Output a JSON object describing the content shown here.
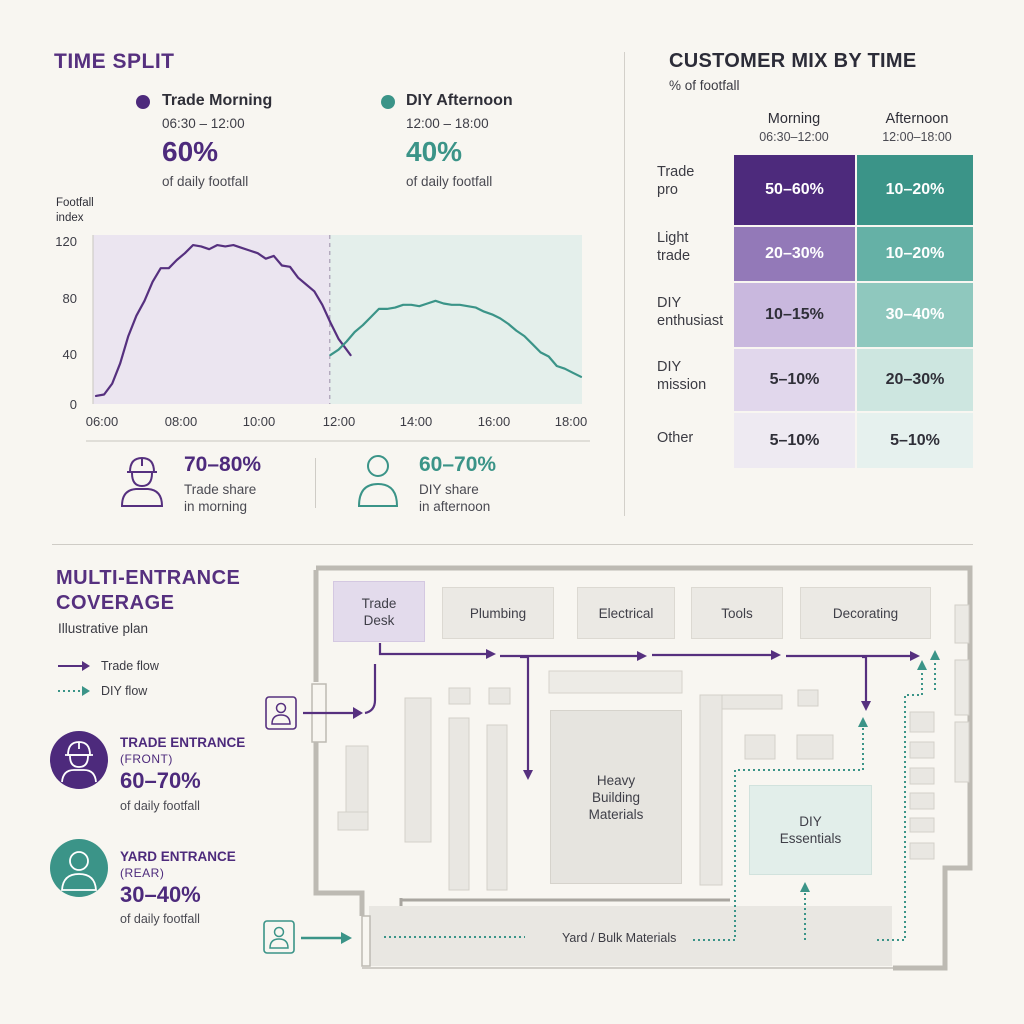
{
  "time_split": {
    "title": "TIME SPLIT",
    "morning": {
      "name": "Trade Morning",
      "time": "06:30 – 12:00",
      "pct": "60%",
      "note": "of daily footfall"
    },
    "afternoon": {
      "name": "DIY Afternoon",
      "time": "12:00 – 18:00",
      "pct": "40%",
      "note": "of daily footfall"
    },
    "stat_trade": {
      "value": "70–80%",
      "line1": "Trade share",
      "line2": "in morning"
    },
    "stat_diy": {
      "value": "60–70%",
      "line1": "DIY share",
      "line2": "in afternoon"
    }
  },
  "chart_data": {
    "type": "line",
    "ylabel_line1": "Footfall",
    "ylabel_line2": "index",
    "xlabel": "",
    "ylim": [
      0,
      120
    ],
    "yticks": [
      0,
      40,
      80,
      120
    ],
    "xticks": [
      "06:00",
      "08:00",
      "10:00",
      "12:00",
      "14:00",
      "16:00",
      "18:00"
    ],
    "x_range": [
      6.0,
      18.0
    ],
    "divider_x": 12.0,
    "series": [
      {
        "segment": "morning",
        "color": "#56307f",
        "points": [
          [
            6.2,
            6
          ],
          [
            6.4,
            7
          ],
          [
            6.6,
            15
          ],
          [
            6.8,
            30
          ],
          [
            7.0,
            50
          ],
          [
            7.2,
            65
          ],
          [
            7.4,
            76
          ],
          [
            7.6,
            90
          ],
          [
            7.8,
            100
          ],
          [
            8.0,
            100
          ],
          [
            8.2,
            106
          ],
          [
            8.4,
            111
          ],
          [
            8.6,
            117
          ],
          [
            8.8,
            116
          ],
          [
            9.0,
            114
          ],
          [
            9.2,
            117
          ],
          [
            9.4,
            116
          ],
          [
            9.6,
            117
          ],
          [
            9.8,
            115
          ],
          [
            10.0,
            113
          ],
          [
            10.2,
            111
          ],
          [
            10.4,
            107
          ],
          [
            10.6,
            109
          ],
          [
            10.8,
            102
          ],
          [
            11.0,
            101
          ],
          [
            11.2,
            93
          ],
          [
            11.4,
            88
          ],
          [
            11.6,
            83
          ],
          [
            11.8,
            73
          ],
          [
            12.0,
            60
          ],
          [
            12.2,
            48
          ],
          [
            12.4,
            40
          ],
          [
            12.5,
            36
          ]
        ]
      },
      {
        "segment": "afternoon",
        "color": "#3b9488",
        "points": [
          [
            12.0,
            36
          ],
          [
            12.2,
            40
          ],
          [
            12.4,
            46
          ],
          [
            12.6,
            53
          ],
          [
            12.8,
            58
          ],
          [
            13.0,
            64
          ],
          [
            13.2,
            70
          ],
          [
            13.4,
            70
          ],
          [
            13.6,
            71
          ],
          [
            13.8,
            73
          ],
          [
            14.0,
            73
          ],
          [
            14.2,
            72
          ],
          [
            14.4,
            74
          ],
          [
            14.6,
            76
          ],
          [
            14.8,
            74
          ],
          [
            15.0,
            73
          ],
          [
            15.2,
            73
          ],
          [
            15.4,
            72
          ],
          [
            15.6,
            71
          ],
          [
            15.8,
            68
          ],
          [
            16.0,
            66
          ],
          [
            16.2,
            63
          ],
          [
            16.4,
            59
          ],
          [
            16.6,
            54
          ],
          [
            16.8,
            50
          ],
          [
            17.0,
            44
          ],
          [
            17.2,
            38
          ],
          [
            17.4,
            35
          ],
          [
            17.6,
            28
          ],
          [
            17.8,
            26
          ],
          [
            18.0,
            23
          ],
          [
            18.2,
            20
          ]
        ]
      }
    ]
  },
  "customer_mix": {
    "title": "CUSTOMER MIX BY TIME",
    "subtitle": "% of footfall",
    "columns": [
      {
        "name": "Morning",
        "time": "06:30–12:00"
      },
      {
        "name": "Afternoon",
        "time": "12:00–18:00"
      }
    ],
    "rows": [
      {
        "label_l1": "Trade",
        "label_l2": "pro",
        "morning": "50–60%",
        "afternoon": "10–20%"
      },
      {
        "label_l1": "Light",
        "label_l2": "trade",
        "morning": "20–30%",
        "afternoon": "10–20%"
      },
      {
        "label_l1": "DIY",
        "label_l2": "enthusiast",
        "morning": "10–15%",
        "afternoon": "30–40%"
      },
      {
        "label_l1": "DIY",
        "label_l2": "mission",
        "morning": "5–10%",
        "afternoon": "20–30%"
      },
      {
        "label_l1": "Other",
        "label_l2": "",
        "morning": "5–10%",
        "afternoon": "5–10%"
      }
    ],
    "morning_colors": [
      "#4d2a7c",
      "#9379b8",
      "#c9b8de",
      "#e1d7ec",
      "#eeeaf2"
    ],
    "afternoon_colors": [
      "#3b9488",
      "#65b1a6",
      "#8fc8be",
      "#cde6e0",
      "#e6f1ee"
    ],
    "morning_text_colors": [
      "#ffffff",
      "#ffffff",
      "#2f2f38",
      "#2f2f38",
      "#2f2f38"
    ],
    "afternoon_text_colors": [
      "#ffffff",
      "#ffffff",
      "#ffffff",
      "#2f2f38",
      "#2f2f38"
    ]
  },
  "coverage": {
    "title_l1": "MULTI-ENTRANCE",
    "title_l2": "COVERAGE",
    "subtitle": "Illustrative plan",
    "legend_trade": "Trade flow",
    "legend_diy": "DIY flow",
    "trade_entrance": {
      "name": "TRADE ENTRANCE",
      "sub": "(FRONT)",
      "pct": "60–70%",
      "note": "of daily footfall"
    },
    "yard_entrance": {
      "name": "YARD ENTRANCE",
      "sub": "(REAR)",
      "pct": "30–40%",
      "note": "of daily footfall"
    }
  },
  "plan": {
    "trade_desk_l1": "Trade",
    "trade_desk_l2": "Desk",
    "plumbing": "Plumbing",
    "electrical": "Electrical",
    "tools": "Tools",
    "decorating": "Decorating",
    "heavy_l1": "Heavy",
    "heavy_l2": "Building",
    "heavy_l3": "Materials",
    "diy_l1": "DIY",
    "diy_l2": "Essentials",
    "yard": "Yard / Bulk Materials"
  },
  "colors": {
    "purple": "#56307f",
    "teal": "#3b9488"
  }
}
